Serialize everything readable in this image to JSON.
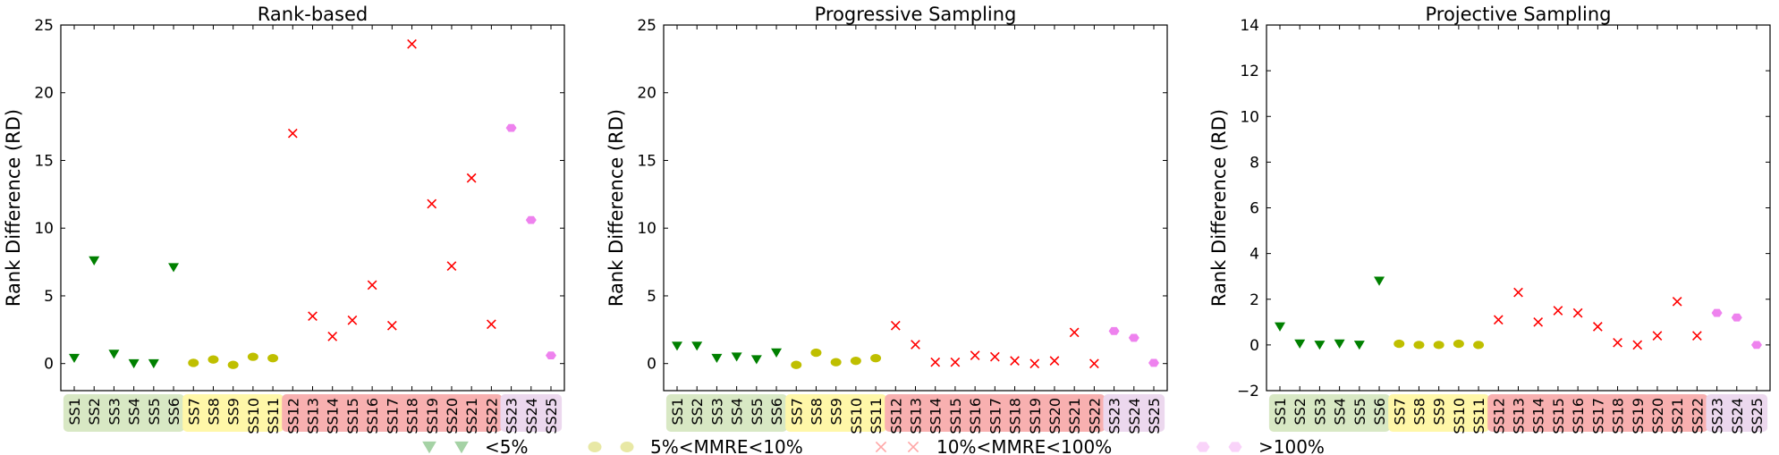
{
  "chart_data": [
    {
      "type": "scatter",
      "title": "Rank-based",
      "ylabel": "Rank Difference (RD)",
      "ylim": [
        -2,
        25
      ],
      "yticks": [
        0,
        5,
        10,
        15,
        20,
        25
      ],
      "categories": [
        "SS1",
        "SS2",
        "SS3",
        "SS4",
        "SS5",
        "SS6",
        "SS7",
        "SS8",
        "SS9",
        "SS10",
        "SS11",
        "SS12",
        "SS13",
        "SS14",
        "SS15",
        "SS16",
        "SS17",
        "SS18",
        "SS19",
        "SS20",
        "SS21",
        "SS22",
        "SS23",
        "SS24",
        "SS25"
      ],
      "values": [
        0.4,
        7.6,
        0.7,
        0.0,
        0.0,
        7.1,
        0.05,
        0.3,
        -0.1,
        0.5,
        0.4,
        17.0,
        3.5,
        2.0,
        3.2,
        5.8,
        2.8,
        23.6,
        11.8,
        7.2,
        13.7,
        2.9,
        17.4,
        10.6,
        0.6
      ]
    },
    {
      "type": "scatter",
      "title": "Progressive Sampling",
      "ylabel": "Rank Difference (RD)",
      "ylim": [
        -2,
        25
      ],
      "yticks": [
        0,
        5,
        10,
        15,
        20,
        25
      ],
      "categories": [
        "SS1",
        "SS2",
        "SS3",
        "SS4",
        "SS5",
        "SS6",
        "SS7",
        "SS8",
        "SS9",
        "SS10",
        "SS11",
        "SS12",
        "SS13",
        "SS14",
        "SS15",
        "SS16",
        "SS17",
        "SS18",
        "SS19",
        "SS20",
        "SS21",
        "SS22",
        "SS23",
        "SS24",
        "SS25"
      ],
      "values": [
        1.3,
        1.3,
        0.4,
        0.5,
        0.3,
        0.8,
        -0.1,
        0.8,
        0.1,
        0.2,
        0.4,
        2.8,
        1.4,
        0.1,
        0.1,
        0.6,
        0.5,
        0.2,
        0.0,
        0.2,
        2.3,
        0.0,
        2.4,
        1.9,
        0.05
      ]
    },
    {
      "type": "scatter",
      "title": "Projective Sampling",
      "ylabel": "Rank Difference (RD)",
      "ylim": [
        -2,
        14
      ],
      "yticks": [
        -2,
        0,
        2,
        4,
        6,
        8,
        10,
        12,
        14
      ],
      "categories": [
        "SS1",
        "SS2",
        "SS3",
        "SS4",
        "SS5",
        "SS6",
        "SS7",
        "SS8",
        "SS9",
        "SS10",
        "SS11",
        "SS12",
        "SS13",
        "SS14",
        "SS15",
        "SS16",
        "SS17",
        "SS18",
        "SS19",
        "SS20",
        "SS21",
        "SS22",
        "SS23",
        "SS24",
        "SS25"
      ],
      "values": [
        0.8,
        0.05,
        0.0,
        0.05,
        0.0,
        2.8,
        0.05,
        0.0,
        0.0,
        0.05,
        0.0,
        1.1,
        2.3,
        1.0,
        1.5,
        1.4,
        0.8,
        0.1,
        0.0,
        0.4,
        1.9,
        0.4,
        1.4,
        1.2,
        0.0
      ]
    }
  ],
  "groups": [
    {
      "label": "<5%",
      "marker": "triangle-down",
      "color": "#008000",
      "bg": "#d8e8c4",
      "members": [
        "SS1",
        "SS2",
        "SS3",
        "SS4",
        "SS5",
        "SS6"
      ]
    },
    {
      "label": "5%<MMRE<10%",
      "marker": "circle",
      "color": "#bfbf00",
      "bg": "#fff7a8",
      "members": [
        "SS7",
        "SS8",
        "SS9",
        "SS10",
        "SS11"
      ]
    },
    {
      "label": "10%<MMRE<100%",
      "marker": "x",
      "color": "#ff0000",
      "bg": "#f8b0b0",
      "members": [
        "SS12",
        "SS13",
        "SS14",
        "SS15",
        "SS16",
        "SS17",
        "SS18",
        "SS19",
        "SS20",
        "SS21",
        "SS22"
      ]
    },
    {
      "label": ">100%",
      "marker": "hexagon",
      "color": "#ee82ee",
      "bg": "#ecd8ee",
      "members": [
        "SS23",
        "SS24",
        "SS25"
      ]
    }
  ],
  "legend": {
    "placement": "bottom",
    "items": [
      {
        "label": "<5%",
        "marker": "triangle-down",
        "color": "#008000"
      },
      {
        "label": "5%<MMRE<10%",
        "marker": "circle",
        "color": "#bfbf00"
      },
      {
        "label": "10%<MMRE<100%",
        "marker": "x",
        "color": "#ff0000"
      },
      {
        "label": ">100%",
        "marker": "hexagon",
        "color": "#ee82ee"
      }
    ]
  }
}
